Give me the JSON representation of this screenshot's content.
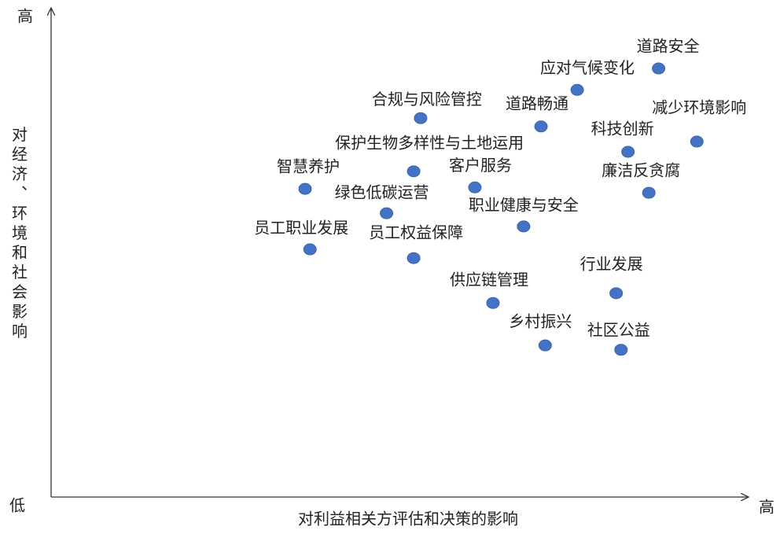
{
  "chart_data": {
    "type": "scatter",
    "x_label": "对利益相关方评估和决策的影响",
    "y_label": "对经济、环境和社会影响",
    "y_high_label": "高",
    "x_high_label": "高",
    "low_label": "低",
    "labels": [
      "道路安全",
      "应对气候变化",
      "合规与风险管控",
      "道路畅通",
      "减少环境影响",
      "科技创新",
      "保护生物多样性与土地运用",
      "客户服务",
      "智慧养护",
      "廉洁反贪腐",
      "绿色低碳运营",
      "职业健康与安全",
      "员工职业发展",
      "员工权益保障",
      "行业发展",
      "供应链管理",
      "乡村振兴",
      "社区公益"
    ],
    "x": [
      87.3,
      75.6,
      53.1,
      70.4,
      92.8,
      82.9,
      52.1,
      60.9,
      36.5,
      85.9,
      48.2,
      67.9,
      37.2,
      52.1,
      81.2,
      63.5,
      71.0,
      81.9
    ],
    "values": [
      87.9,
      83.5,
      77.7,
      76.0,
      72.9,
      70.8,
      66.8,
      63.5,
      63.2,
      62.4,
      58.2,
      55.5,
      50.8,
      49.0,
      41.8,
      39.8,
      31.1,
      30.2
    ],
    "color": "#4472c4",
    "xlim": [
      0,
      100
    ],
    "ylim": [
      0,
      100
    ]
  }
}
